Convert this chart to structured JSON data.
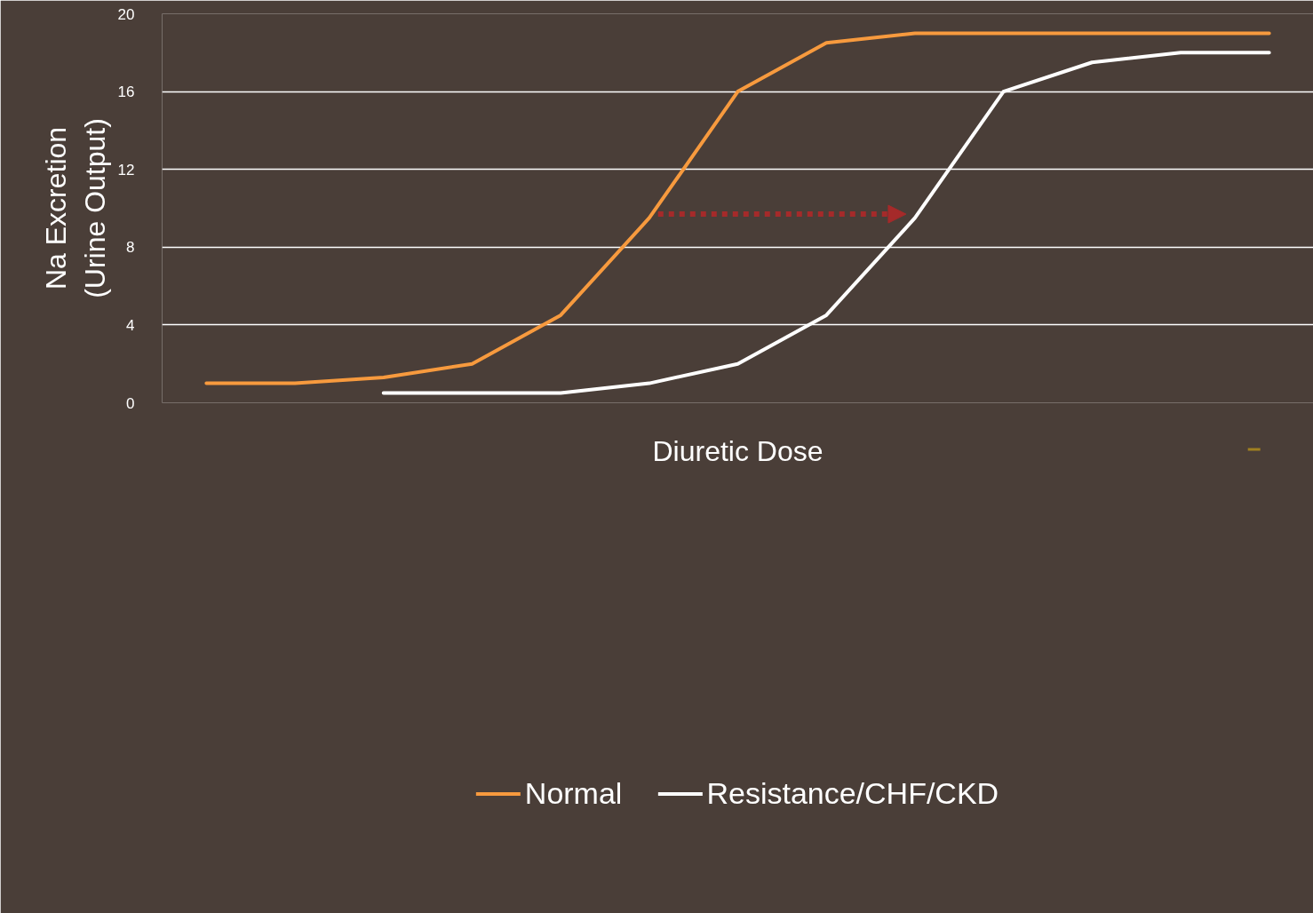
{
  "chart_data": {
    "type": "line",
    "xlabel": "Diuretic Dose",
    "ylabel": "Na Excretion\n(Urine Output)",
    "categories": [
      null,
      null,
      null,
      null,
      null,
      null,
      null,
      null,
      null,
      null,
      null,
      null,
      null
    ],
    "series": [
      {
        "name": "Normal",
        "color": "#f79a3e",
        "values": [
          1,
          1,
          1.3,
          2,
          4.5,
          9.5,
          16,
          18.5,
          19,
          19,
          19,
          19,
          19
        ]
      },
      {
        "name": "Resistance/CHF/CKD",
        "color": "#ffffff",
        "values": [
          null,
          null,
          0.5,
          0.5,
          0.5,
          1,
          2,
          4.5,
          9.5,
          16,
          17.5,
          18,
          18
        ]
      }
    ],
    "ylim": [
      0,
      20
    ],
    "yticks": [
      0,
      4,
      8,
      12,
      16,
      20
    ],
    "grid": "y",
    "legend": "bottom",
    "tick_labels": "y",
    "marker": "none",
    "line_style": "solid"
  }
}
